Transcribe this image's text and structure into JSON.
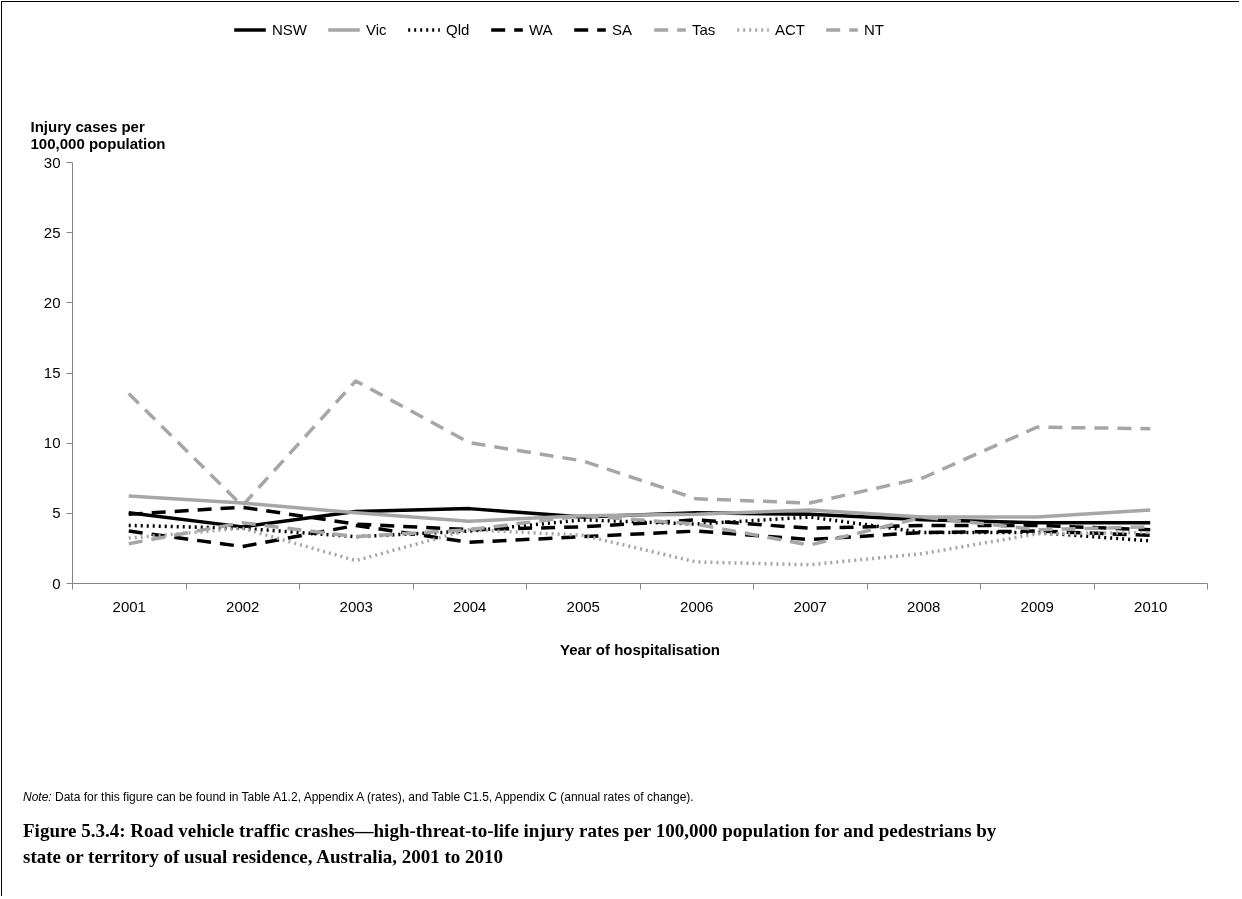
{
  "chart_data": {
    "type": "line",
    "title": "Figure 5.3.4: Road vehicle traffic crashes—high-threat-to-life injury rates per 100,000 population for and pedestrians by state or territory of usual residence, Australia, 2001 to 2010",
    "xlabel": "Year of hospitalisation",
    "ylabel": "Injury cases per 100,000 population",
    "annotations": [
      "Note: Data for this figure can be found in Table A1.2, Appendix A (rates), and Table C1.5, Appendix C (annual rates of change)."
    ],
    "categories": [
      "2001",
      "2002",
      "2003",
      "2004",
      "2005",
      "2006",
      "2007",
      "2008",
      "2009",
      "2010"
    ],
    "ylim": [
      0,
      30
    ],
    "yticks": [
      0,
      5,
      10,
      15,
      20,
      25,
      30
    ],
    "grid": false,
    "legend": "top",
    "marker": "none",
    "series": [
      {
        "name": "NSW",
        "color": "#000000",
        "line_style": "solid",
        "values": [
          5.0,
          4.0,
          5.1,
          5.3,
          4.7,
          5.0,
          4.9,
          4.5,
          4.3,
          4.3
        ]
      },
      {
        "name": "Vic",
        "color": "#a6a6a6",
        "line_style": "solid",
        "values": [
          6.2,
          5.7,
          5.0,
          4.4,
          4.8,
          4.9,
          5.2,
          4.7,
          4.7,
          5.2
        ]
      },
      {
        "name": "Qld",
        "color": "#000000",
        "line_style": "dotted",
        "values": [
          4.1,
          3.9,
          3.3,
          3.7,
          4.5,
          4.2,
          4.7,
          3.6,
          3.6,
          3.0
        ]
      },
      {
        "name": "WA",
        "color": "#000000",
        "line_style": "dashed",
        "values": [
          3.7,
          2.6,
          4.1,
          2.9,
          3.3,
          3.7,
          3.1,
          3.6,
          3.7,
          3.4
        ]
      },
      {
        "name": "SA",
        "color": "#000000",
        "line_style": "dashed",
        "values": [
          4.9,
          5.4,
          4.2,
          3.8,
          4.0,
          4.5,
          3.9,
          4.1,
          4.1,
          3.8
        ]
      },
      {
        "name": "Tas",
        "color": "#a6a6a6",
        "line_style": "dashed",
        "values": [
          2.8,
          4.3,
          3.3,
          3.8,
          4.8,
          4.2,
          2.7,
          4.7,
          3.8,
          4.0
        ]
      },
      {
        "name": "ACT",
        "color": "#a6a6a6",
        "line_style": "dotted",
        "values": [
          3.2,
          3.9,
          1.6,
          3.8,
          3.4,
          1.5,
          1.3,
          2.1,
          3.5,
          3.6
        ]
      },
      {
        "name": "NT",
        "color": "#a6a6a6",
        "line_style": "dashed",
        "values": [
          13.5,
          5.5,
          14.4,
          10.0,
          8.7,
          6.0,
          5.7,
          7.5,
          11.1,
          11.0
        ]
      }
    ]
  }
}
